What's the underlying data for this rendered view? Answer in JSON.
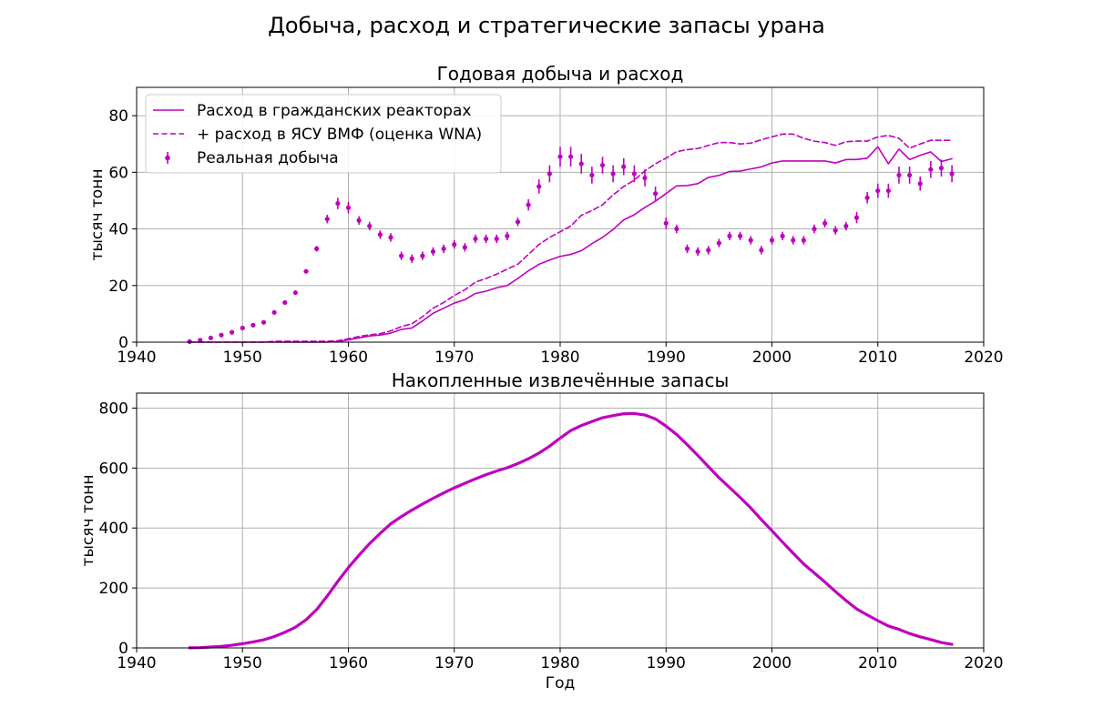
{
  "figure": {
    "suptitle": "Добыча, расход и стратегические запасы урана"
  },
  "colors": {
    "series": "#bf00bf",
    "grid": "#b0b0b0"
  },
  "chart_data": [
    {
      "type": "line",
      "title": "Годовая добыча и расход",
      "xlabel": "",
      "ylabel": "тысяч тонн",
      "xlim": [
        1940,
        2020
      ],
      "ylim": [
        0,
        90
      ],
      "xticks": [
        1940,
        1950,
        1960,
        1970,
        1980,
        1990,
        2000,
        2010,
        2020
      ],
      "yticks": [
        0,
        20,
        40,
        60,
        80
      ],
      "grid": true,
      "legend_position": "upper-left",
      "series": [
        {
          "name": "Расход в гражданских реакторах",
          "style": "solid",
          "x": [
            1945,
            1946,
            1947,
            1948,
            1949,
            1950,
            1951,
            1952,
            1953,
            1954,
            1955,
            1956,
            1957,
            1958,
            1959,
            1960,
            1961,
            1962,
            1963,
            1964,
            1965,
            1966,
            1967,
            1968,
            1969,
            1970,
            1971,
            1972,
            1973,
            1974,
            1975,
            1976,
            1977,
            1978,
            1979,
            1980,
            1981,
            1982,
            1983,
            1984,
            1985,
            1986,
            1987,
            1988,
            1989,
            1990,
            1991,
            1992,
            1993,
            1994,
            1995,
            1996,
            1997,
            1998,
            1999,
            2000,
            2001,
            2002,
            2003,
            2004,
            2005,
            2006,
            2007,
            2008,
            2009,
            2010,
            2011,
            2012,
            2013,
            2014,
            2015,
            2016,
            2017
          ],
          "values": [
            0,
            0,
            0,
            0,
            0,
            0,
            0,
            0,
            0,
            0,
            0,
            0,
            0,
            0,
            0.2,
            0.8,
            1.5,
            2.2,
            2.5,
            3.2,
            4.5,
            5,
            7.5,
            10.2,
            12,
            13.8,
            15,
            17.2,
            18,
            19.2,
            20,
            22.5,
            25.2,
            27.5,
            29,
            30.3,
            31,
            32.3,
            34.8,
            37,
            39.8,
            43.2,
            45,
            47.6,
            49.8,
            52.5,
            55.2,
            55.3,
            56,
            58.2,
            58.9,
            60.3,
            60.4,
            61.2,
            61.9,
            63.3,
            64,
            64,
            64,
            64,
            64,
            63.3,
            64.5,
            64.5,
            65,
            69,
            63,
            68.2,
            64.5,
            66,
            67.2,
            63.8,
            64.8
          ]
        },
        {
          "name": "+ расход в ЯСУ ВМФ (оценка WNA)",
          "style": "dashed",
          "x": [
            1945,
            1946,
            1947,
            1948,
            1949,
            1950,
            1951,
            1952,
            1953,
            1954,
            1955,
            1956,
            1957,
            1958,
            1959,
            1960,
            1961,
            1962,
            1963,
            1964,
            1965,
            1966,
            1967,
            1968,
            1969,
            1970,
            1971,
            1972,
            1973,
            1974,
            1975,
            1976,
            1977,
            1978,
            1979,
            1980,
            1981,
            1982,
            1983,
            1984,
            1985,
            1986,
            1987,
            1988,
            1989,
            1990,
            1991,
            1992,
            1993,
            1994,
            1995,
            1996,
            1997,
            1998,
            1999,
            2000,
            2001,
            2002,
            2003,
            2004,
            2005,
            2006,
            2007,
            2008,
            2009,
            2010,
            2011,
            2012,
            2013,
            2014,
            2015,
            2016,
            2017
          ],
          "values": [
            0,
            0,
            0,
            0,
            0,
            0,
            0,
            0,
            0.3,
            0.3,
            0.3,
            0.3,
            0.3,
            0.3,
            0.5,
            1.2,
            2,
            2.6,
            3,
            4,
            5.5,
            6.5,
            9,
            12,
            14,
            16.5,
            18.5,
            21.2,
            22.5,
            24,
            25.8,
            27.5,
            31,
            34.5,
            37,
            39,
            41,
            44.8,
            46.5,
            48.5,
            52,
            55,
            57.2,
            60.5,
            63,
            65,
            67.3,
            68,
            68.4,
            69.5,
            70.5,
            70.5,
            70,
            70.3,
            71.5,
            72.5,
            73.5,
            73.5,
            72,
            71,
            70.5,
            69.5,
            70.8,
            71,
            71,
            72.5,
            73,
            72,
            68.5,
            70,
            71.3,
            71.3,
            71.3
          ]
        },
        {
          "name": "Реальная добыча",
          "style": "errorbar",
          "x": [
            1945,
            1946,
            1947,
            1948,
            1949,
            1950,
            1951,
            1952,
            1953,
            1954,
            1955,
            1956,
            1957,
            1958,
            1959,
            1960,
            1961,
            1962,
            1963,
            1964,
            1965,
            1966,
            1967,
            1968,
            1969,
            1970,
            1971,
            1972,
            1973,
            1974,
            1975,
            1976,
            1977,
            1978,
            1979,
            1980,
            1981,
            1982,
            1983,
            1984,
            1985,
            1986,
            1987,
            1988,
            1989,
            1990,
            1991,
            1992,
            1993,
            1994,
            1995,
            1996,
            1997,
            1998,
            1999,
            2000,
            2001,
            2002,
            2003,
            2004,
            2005,
            2006,
            2007,
            2008,
            2009,
            2010,
            2011,
            2012,
            2013,
            2014,
            2015,
            2016,
            2017
          ],
          "values": [
            0.2,
            0.7,
            1.5,
            2.5,
            3.5,
            5,
            6,
            7,
            10.5,
            14,
            17.5,
            25,
            33,
            43.5,
            49,
            47.5,
            43,
            41,
            38,
            37,
            30.5,
            29.5,
            30.5,
            32,
            33,
            34.5,
            33.5,
            36.5,
            36.5,
            36.5,
            37.5,
            42.5,
            48.5,
            55,
            59.5,
            65.5,
            65.5,
            63,
            59,
            62.5,
            59.5,
            62,
            59.5,
            58,
            52.5,
            42,
            40,
            33,
            32,
            32.5,
            35,
            37.5,
            37.5,
            36,
            32.5,
            36,
            37.5,
            36,
            36,
            40,
            42,
            39.5,
            41,
            44,
            51,
            53.5,
            53.5,
            59,
            59,
            56,
            61,
            61.5,
            59.5
          ],
          "error": [
            0,
            0,
            0,
            0,
            0,
            0,
            0,
            0,
            0,
            0,
            0,
            0,
            1,
            1.5,
            2,
            2,
            1.5,
            1.5,
            1.5,
            1.5,
            1.5,
            1.5,
            1.5,
            1.5,
            1.5,
            1.5,
            1.5,
            1.5,
            1.5,
            1.5,
            1.5,
            1.5,
            2,
            2.5,
            3,
            3.5,
            3.5,
            3.5,
            3,
            3,
            3,
            3,
            3,
            3,
            2.5,
            2,
            1.5,
            1.5,
            1.5,
            1.5,
            1.5,
            1.5,
            1.5,
            1.5,
            1.5,
            1.5,
            1.5,
            1.5,
            1.5,
            1.5,
            1.5,
            1.5,
            1.5,
            2,
            2,
            2.5,
            2.5,
            3,
            3,
            2.5,
            3,
            3,
            3
          ]
        }
      ]
    },
    {
      "type": "line",
      "title": "Накопленные извлечённые запасы",
      "xlabel": "Год",
      "ylabel": "тысяч тонн",
      "xlim": [
        1940,
        2020
      ],
      "ylim": [
        0,
        850
      ],
      "xticks": [
        1940,
        1950,
        1960,
        1970,
        1980,
        1990,
        2000,
        2010,
        2020
      ],
      "yticks": [
        0,
        200,
        400,
        600,
        800
      ],
      "grid": true,
      "series": [
        {
          "style": "solid-thick",
          "x": [
            1945,
            1946,
            1947,
            1948,
            1949,
            1950,
            1951,
            1952,
            1953,
            1954,
            1955,
            1956,
            1957,
            1958,
            1959,
            1960,
            1961,
            1962,
            1963,
            1964,
            1965,
            1966,
            1967,
            1968,
            1969,
            1970,
            1971,
            1972,
            1973,
            1974,
            1975,
            1976,
            1977,
            1978,
            1979,
            1980,
            1981,
            1982,
            1983,
            1984,
            1985,
            1986,
            1987,
            1988,
            1989,
            1990,
            1991,
            1992,
            1993,
            1994,
            1995,
            1996,
            1997,
            1998,
            1999,
            2000,
            2001,
            2002,
            2003,
            2004,
            2005,
            2006,
            2007,
            2008,
            2009,
            2010,
            2011,
            2012,
            2013,
            2014,
            2015,
            2016,
            2017
          ],
          "values": [
            0.5,
            1,
            3,
            5,
            9,
            14,
            20,
            27,
            38,
            52,
            69,
            94,
            128,
            173,
            222,
            268,
            309,
            348,
            382,
            414,
            438,
            460,
            480,
            499,
            517,
            534,
            549,
            564,
            578,
            590,
            601,
            615,
            631,
            650,
            673,
            700,
            725,
            742,
            755,
            768,
            775,
            781,
            782,
            777,
            764,
            740,
            712,
            678,
            642,
            605,
            568,
            535,
            502,
            467,
            428,
            391,
            353,
            316,
            280,
            250,
            220,
            188,
            158,
            130,
            110,
            91,
            73,
            62,
            48,
            37,
            28,
            18,
            12
          ]
        }
      ]
    }
  ]
}
